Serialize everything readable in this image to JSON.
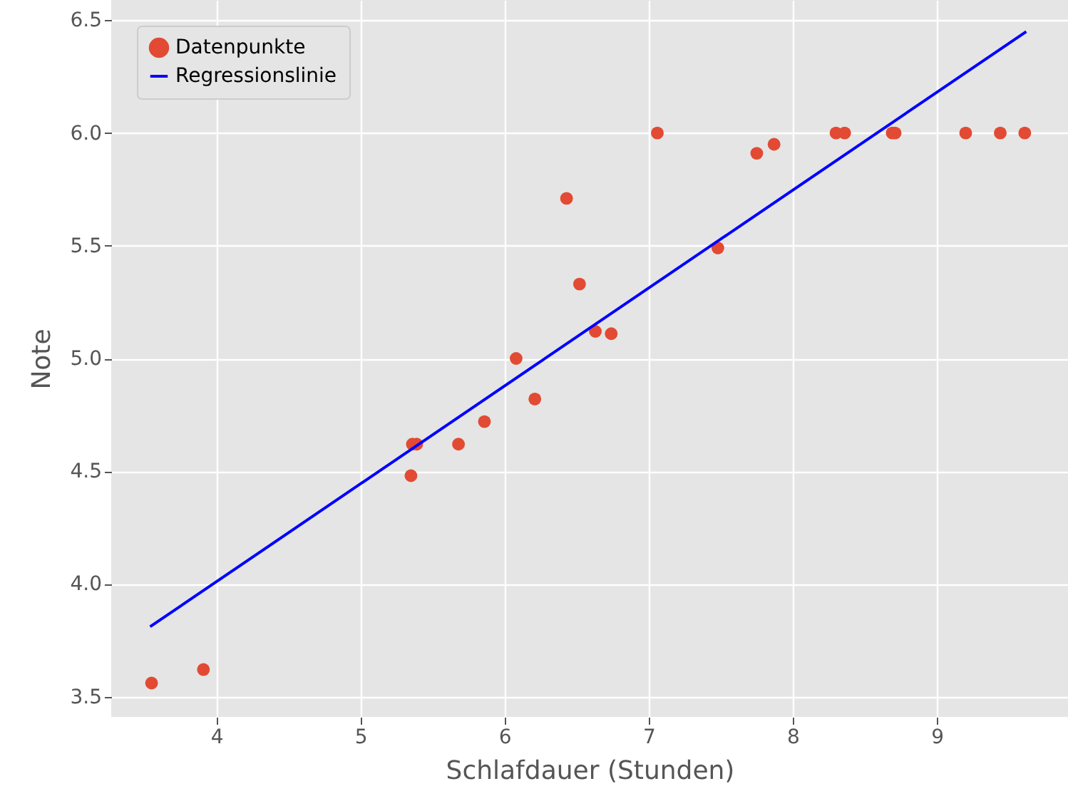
{
  "chart_data": {
    "type": "scatter",
    "xlabel": "Schlafdauer (Stunden)",
    "ylabel": "Note",
    "xlim": [
      3.27,
      9.91
    ],
    "xticks": [
      4,
      5,
      6,
      7,
      8,
      9
    ],
    "ylim": [
      3.41,
      6.59
    ],
    "yticks": [
      3.5,
      {
        "value": 4,
        "label": "4.0"
      },
      4.5,
      {
        "value": 5,
        "label": "5.0"
      },
      5.5,
      {
        "value": 6,
        "label": "6.0"
      },
      6.5
    ],
    "grid": true,
    "legend": "top left",
    "series": [
      {
        "name": "Datenpunkte",
        "marker": "circle",
        "color": "#e24a33",
        "x": [
          3.55,
          3.91,
          5.36,
          5.39,
          5.35,
          5.68,
          5.86,
          6.08,
          6.21,
          6.43,
          6.52,
          6.63,
          6.74,
          7.06,
          7.48,
          7.75,
          7.87,
          8.3,
          8.36,
          8.69,
          8.71,
          9.2,
          9.44,
          9.61
        ],
        "values": [
          3.56,
          3.62,
          4.62,
          4.62,
          4.48,
          4.62,
          4.72,
          5.0,
          4.82,
          5.71,
          5.33,
          5.12,
          5.11,
          6.0,
          5.49,
          5.91,
          5.95,
          6.0,
          6.0,
          6.0,
          6.0,
          6.0,
          6.0,
          6.0
        ]
      },
      {
        "name": "Regressionslinie",
        "type": "line",
        "marker": "none",
        "color": "#0000ff",
        "x": [
          3.54,
          9.62
        ],
        "values": [
          3.81,
          6.45
        ]
      }
    ]
  }
}
